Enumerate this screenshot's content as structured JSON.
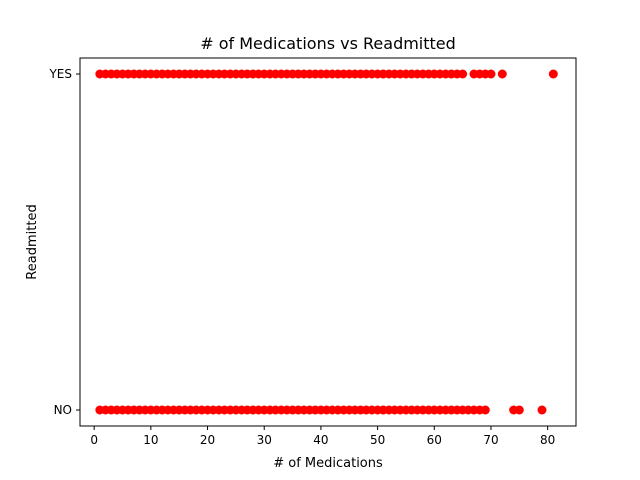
{
  "chart_data": {
    "type": "scatter",
    "title": "# of Medications vs Readmitted",
    "xlabel": "# of Medications",
    "ylabel": "Readmitted",
    "xlim": [
      -2.5,
      85
    ],
    "xticks": [
      0,
      10,
      20,
      30,
      40,
      50,
      60,
      70,
      80
    ],
    "y_categories": [
      "NO",
      "YES"
    ],
    "marker_color": "#ff0000",
    "grid": false,
    "series": [
      {
        "category": "YES",
        "x": [
          1,
          2,
          3,
          4,
          5,
          6,
          7,
          8,
          9,
          10,
          11,
          12,
          13,
          14,
          15,
          16,
          17,
          18,
          19,
          20,
          21,
          22,
          23,
          24,
          25,
          26,
          27,
          28,
          29,
          30,
          31,
          32,
          33,
          34,
          35,
          36,
          37,
          38,
          39,
          40,
          41,
          42,
          43,
          44,
          45,
          46,
          47,
          48,
          49,
          50,
          51,
          52,
          53,
          54,
          55,
          56,
          57,
          58,
          59,
          60,
          61,
          62,
          63,
          64,
          65,
          67,
          68,
          69,
          70,
          72,
          81
        ]
      },
      {
        "category": "NO",
        "x": [
          1,
          2,
          3,
          4,
          5,
          6,
          7,
          8,
          9,
          10,
          11,
          12,
          13,
          14,
          15,
          16,
          17,
          18,
          19,
          20,
          21,
          22,
          23,
          24,
          25,
          26,
          27,
          28,
          29,
          30,
          31,
          32,
          33,
          34,
          35,
          36,
          37,
          38,
          39,
          40,
          41,
          42,
          43,
          44,
          45,
          46,
          47,
          48,
          49,
          50,
          51,
          52,
          53,
          54,
          55,
          56,
          57,
          58,
          59,
          60,
          61,
          62,
          63,
          64,
          65,
          66,
          67,
          68,
          69,
          74,
          75,
          79
        ]
      }
    ]
  }
}
